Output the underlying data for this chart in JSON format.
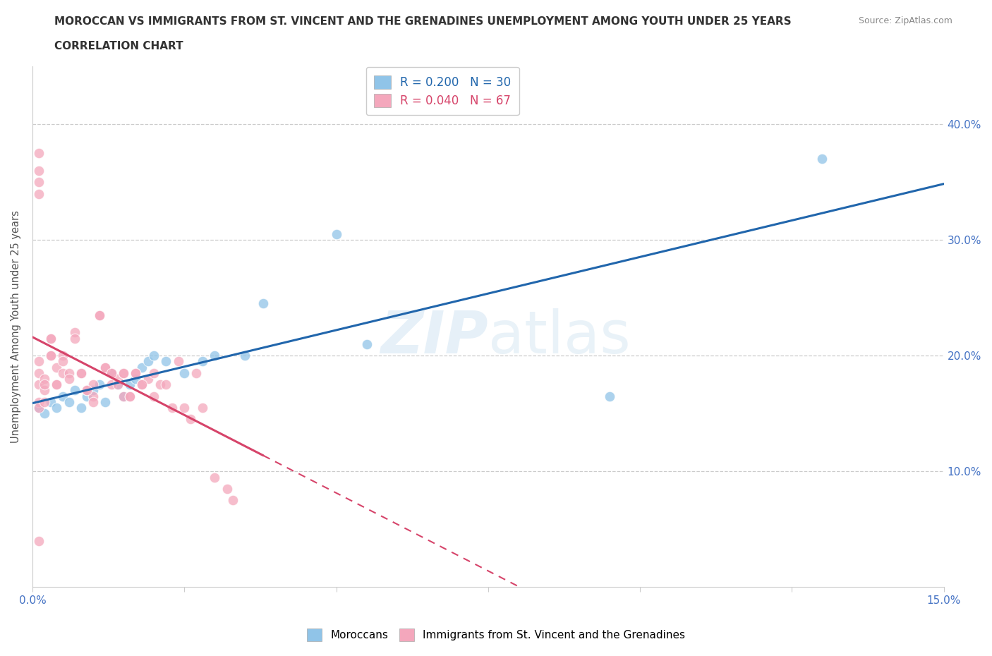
{
  "title_line1": "MOROCCAN VS IMMIGRANTS FROM ST. VINCENT AND THE GRENADINES UNEMPLOYMENT AMONG YOUTH UNDER 25 YEARS",
  "title_line2": "CORRELATION CHART",
  "source": "Source: ZipAtlas.com",
  "ylabel": "Unemployment Among Youth under 25 years",
  "xmin": 0.0,
  "xmax": 0.15,
  "ymin": 0.0,
  "ymax": 0.45,
  "yticks": [
    0.0,
    0.1,
    0.2,
    0.3,
    0.4
  ],
  "ytick_labels": [
    "",
    "10.0%",
    "20.0%",
    "30.0%",
    "40.0%"
  ],
  "xticks": [
    0.0,
    0.025,
    0.05,
    0.075,
    0.1,
    0.125,
    0.15
  ],
  "xtick_labels": [
    "0.0%",
    "",
    "",
    "",
    "",
    "",
    "15.0%"
  ],
  "blue_R": 0.2,
  "blue_N": 30,
  "pink_R": 0.04,
  "pink_N": 67,
  "blue_color": "#90c4e8",
  "pink_color": "#f4a7bc",
  "blue_line_color": "#2166ac",
  "pink_line_color": "#d6446a",
  "background_color": "#ffffff",
  "blue_scatter_x": [
    0.001,
    0.002,
    0.003,
    0.004,
    0.005,
    0.006,
    0.007,
    0.008,
    0.009,
    0.01,
    0.011,
    0.012,
    0.013,
    0.014,
    0.015,
    0.016,
    0.017,
    0.018,
    0.019,
    0.02,
    0.022,
    0.025,
    0.028,
    0.03,
    0.035,
    0.038,
    0.05,
    0.055,
    0.095,
    0.13
  ],
  "blue_scatter_y": [
    0.155,
    0.15,
    0.16,
    0.155,
    0.165,
    0.16,
    0.17,
    0.155,
    0.165,
    0.17,
    0.175,
    0.16,
    0.185,
    0.175,
    0.165,
    0.175,
    0.18,
    0.19,
    0.195,
    0.2,
    0.195,
    0.185,
    0.195,
    0.2,
    0.2,
    0.245,
    0.305,
    0.21,
    0.165,
    0.37
  ],
  "pink_scatter_x": [
    0.001,
    0.001,
    0.001,
    0.002,
    0.002,
    0.003,
    0.003,
    0.004,
    0.004,
    0.005,
    0.005,
    0.006,
    0.007,
    0.008,
    0.009,
    0.01,
    0.01,
    0.011,
    0.012,
    0.013,
    0.013,
    0.014,
    0.015,
    0.015,
    0.016,
    0.017,
    0.018,
    0.019,
    0.02,
    0.02,
    0.021,
    0.022,
    0.023,
    0.024,
    0.025,
    0.026,
    0.027,
    0.028,
    0.03,
    0.032,
    0.033,
    0.001,
    0.001,
    0.001,
    0.001,
    0.001,
    0.001,
    0.001,
    0.002,
    0.002,
    0.003,
    0.003,
    0.004,
    0.005,
    0.006,
    0.007,
    0.008,
    0.009,
    0.01,
    0.011,
    0.012,
    0.013,
    0.014,
    0.015,
    0.016,
    0.017,
    0.018
  ],
  "pink_scatter_y": [
    0.175,
    0.185,
    0.195,
    0.18,
    0.17,
    0.215,
    0.2,
    0.19,
    0.175,
    0.2,
    0.185,
    0.185,
    0.22,
    0.185,
    0.17,
    0.175,
    0.165,
    0.235,
    0.19,
    0.185,
    0.175,
    0.18,
    0.185,
    0.165,
    0.165,
    0.185,
    0.175,
    0.18,
    0.185,
    0.165,
    0.175,
    0.175,
    0.155,
    0.195,
    0.155,
    0.145,
    0.185,
    0.155,
    0.095,
    0.085,
    0.075,
    0.375,
    0.36,
    0.35,
    0.34,
    0.16,
    0.155,
    0.04,
    0.175,
    0.16,
    0.215,
    0.2,
    0.175,
    0.195,
    0.18,
    0.215,
    0.185,
    0.17,
    0.16,
    0.235,
    0.19,
    0.185,
    0.175,
    0.185,
    0.165,
    0.185,
    0.175
  ]
}
